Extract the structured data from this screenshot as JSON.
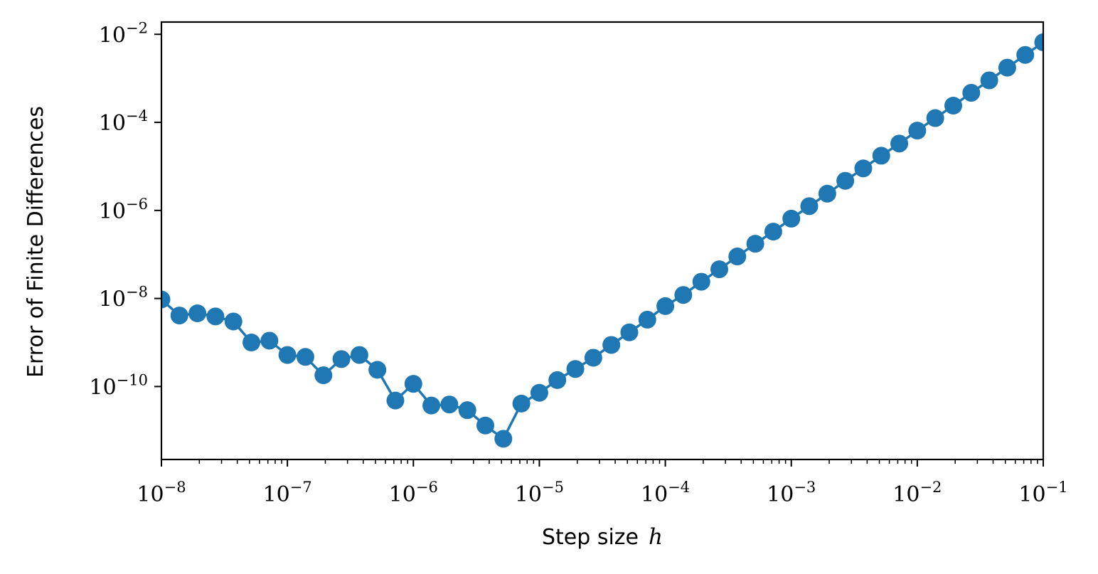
{
  "chart_data": {
    "type": "line",
    "title": "",
    "xlabel": "Step size",
    "xlabel_symbol": "h",
    "ylabel": "Error of Finite Differences",
    "xscale": "log",
    "yscale": "log",
    "xlim": [
      1e-08,
      0.1
    ],
    "ylim": [
      2.2e-12,
      0.019
    ],
    "x_ticks": [
      {
        "base": "10",
        "exp": "−8",
        "value": 1e-08
      },
      {
        "base": "10",
        "exp": "−7",
        "value": 1e-07
      },
      {
        "base": "10",
        "exp": "−6",
        "value": 1e-06
      },
      {
        "base": "10",
        "exp": "−5",
        "value": 1e-05
      },
      {
        "base": "10",
        "exp": "−4",
        "value": 0.0001
      },
      {
        "base": "10",
        "exp": "−3",
        "value": 0.001
      },
      {
        "base": "10",
        "exp": "−2",
        "value": 0.01
      },
      {
        "base": "10",
        "exp": "−1",
        "value": 0.1
      }
    ],
    "y_ticks": [
      {
        "base": "10",
        "exp": "−10",
        "value": 1e-10
      },
      {
        "base": "10",
        "exp": "−8",
        "value": 1e-08
      },
      {
        "base": "10",
        "exp": "−6",
        "value": 1e-06
      },
      {
        "base": "10",
        "exp": "−4",
        "value": 0.0001
      },
      {
        "base": "10",
        "exp": "−2",
        "value": 0.01
      }
    ],
    "grid": false,
    "marker": "circle",
    "color": "#1f77b4",
    "series": [
      {
        "x": [
          1e-08,
          1.389e-08,
          1.931e-08,
          2.683e-08,
          3.728e-08,
          5.179e-08,
          7.197e-08,
          1e-07,
          1.389e-07,
          1.931e-07,
          2.683e-07,
          3.728e-07,
          5.179e-07,
          7.197e-07,
          1e-06,
          1.389e-06,
          1.931e-06,
          2.683e-06,
          3.728e-06,
          5.179e-06,
          7.197e-06,
          1e-05,
          1.389e-05,
          1.931e-05,
          2.683e-05,
          3.728e-05,
          5.179e-05,
          7.197e-05,
          0.0001,
          0.0001389,
          0.0001931,
          0.0002683,
          0.0003728,
          0.0005179,
          0.0007197,
          0.001,
          0.001389,
          0.001931,
          0.002683,
          0.003728,
          0.005179,
          0.007197,
          0.01,
          0.01389,
          0.01931,
          0.02683,
          0.03728,
          0.05179,
          0.07197,
          0.1
        ],
        "y": [
          9.5e-09,
          4.1e-09,
          4.6e-09,
          3.9e-09,
          3e-09,
          1e-09,
          1.1e-09,
          5.2e-10,
          4.7e-10,
          1.8e-10,
          4.2e-10,
          5.2e-10,
          2.4e-10,
          4.8e-11,
          1.15e-10,
          3.7e-11,
          3.9e-11,
          2.9e-11,
          1.3e-11,
          6.5e-12,
          4.1e-11,
          7.2e-11,
          1.4e-10,
          2.5e-10,
          4.5e-10,
          8.8e-10,
          1.7e-09,
          3.3e-09,
          6.7e-09,
          1.2e-08,
          2.4e-08,
          4.6e-08,
          9e-08,
          1.75e-07,
          3.3e-07,
          6.5e-07,
          1.25e-06,
          2.4e-06,
          4.7e-06,
          9e-06,
          1.75e-05,
          3.3e-05,
          6.5e-05,
          0.000125,
          0.00024,
          0.00047,
          0.0009,
          0.00175,
          0.0034,
          0.0066
        ]
      }
    ]
  }
}
